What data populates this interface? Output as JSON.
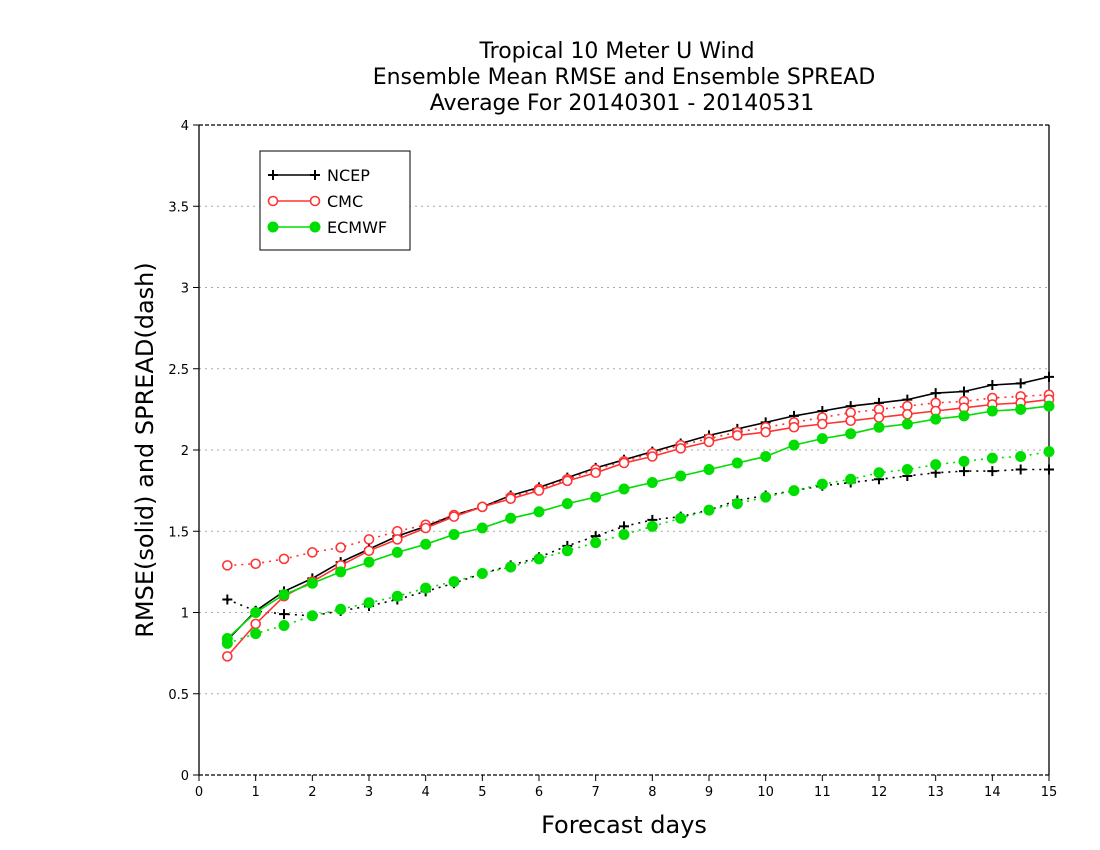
{
  "chart_data": {
    "type": "line",
    "title": [
      "Tropical 10 Meter U Wind",
      "Ensemble Mean RMSE and Ensemble SPREAD",
      "Average For 20140301 - 20140531"
    ],
    "xlabel": "Forecast days",
    "ylabel": "RMSE(solid) and SPREAD(dash)",
    "xlim": [
      0,
      15
    ],
    "ylim": [
      0,
      4
    ],
    "xticks": [
      "0",
      "1",
      "2",
      "3",
      "4",
      "5",
      "6",
      "7",
      "8",
      "9",
      "10",
      "11",
      "12",
      "13",
      "14",
      "15"
    ],
    "yticks": [
      "0",
      "0.5",
      "1",
      "1.5",
      "2",
      "2.5",
      "3",
      "3.5",
      "4"
    ],
    "grid": "horizontal dotted",
    "legend_position": "top-left",
    "x": [
      0.5,
      1,
      1.5,
      2,
      2.5,
      3,
      3.5,
      4,
      4.5,
      5,
      5.5,
      6,
      6.5,
      7,
      7.5,
      8,
      8.5,
      9,
      9.5,
      10,
      10.5,
      11,
      11.5,
      12,
      12.5,
      13,
      13.5,
      14,
      14.5,
      15
    ],
    "series": [
      {
        "name": "NCEP",
        "color": "#000000",
        "marker": "plus",
        "rmse": [
          0.83,
          1.01,
          1.13,
          1.21,
          1.31,
          1.39,
          1.47,
          1.53,
          1.6,
          1.65,
          1.72,
          1.77,
          1.83,
          1.89,
          1.94,
          1.99,
          2.04,
          2.09,
          2.13,
          2.17,
          2.21,
          2.24,
          2.27,
          2.29,
          2.31,
          2.35,
          2.36,
          2.4,
          2.41,
          2.45
        ],
        "spread": [
          1.08,
          1.01,
          0.99,
          0.98,
          1.01,
          1.04,
          1.08,
          1.13,
          1.18,
          1.24,
          1.29,
          1.34,
          1.41,
          1.47,
          1.53,
          1.57,
          1.59,
          1.63,
          1.69,
          1.72,
          1.75,
          1.78,
          1.8,
          1.82,
          1.84,
          1.86,
          1.87,
          1.87,
          1.88,
          1.88
        ]
      },
      {
        "name": "CMC",
        "color": "#ff3333",
        "marker": "open-circle",
        "rmse": [
          0.73,
          0.93,
          1.1,
          1.19,
          1.29,
          1.38,
          1.45,
          1.52,
          1.59,
          1.65,
          1.7,
          1.75,
          1.81,
          1.86,
          1.92,
          1.96,
          2.01,
          2.05,
          2.09,
          2.11,
          2.14,
          2.16,
          2.18,
          2.2,
          2.22,
          2.24,
          2.26,
          2.28,
          2.29,
          2.31
        ],
        "spread": [
          1.29,
          1.3,
          1.33,
          1.37,
          1.4,
          1.45,
          1.5,
          1.54,
          1.6,
          1.65,
          1.71,
          1.76,
          1.82,
          1.88,
          1.93,
          1.98,
          2.03,
          2.07,
          2.11,
          2.14,
          2.17,
          2.2,
          2.23,
          2.25,
          2.27,
          2.29,
          2.3,
          2.32,
          2.33,
          2.34
        ]
      },
      {
        "name": "ECMWF",
        "color": "#00dd00",
        "marker": "filled-circle",
        "rmse": [
          0.84,
          1.0,
          1.11,
          1.18,
          1.25,
          1.31,
          1.37,
          1.42,
          1.48,
          1.52,
          1.58,
          1.62,
          1.67,
          1.71,
          1.76,
          1.8,
          1.84,
          1.88,
          1.92,
          1.96,
          2.03,
          2.07,
          2.1,
          2.14,
          2.16,
          2.19,
          2.21,
          2.24,
          2.25,
          2.27
        ],
        "spread": [
          0.81,
          0.87,
          0.92,
          0.98,
          1.02,
          1.06,
          1.1,
          1.15,
          1.19,
          1.24,
          1.28,
          1.33,
          1.38,
          1.43,
          1.48,
          1.53,
          1.58,
          1.63,
          1.67,
          1.71,
          1.75,
          1.79,
          1.82,
          1.86,
          1.88,
          1.91,
          1.93,
          1.95,
          1.96,
          1.99
        ]
      }
    ]
  }
}
